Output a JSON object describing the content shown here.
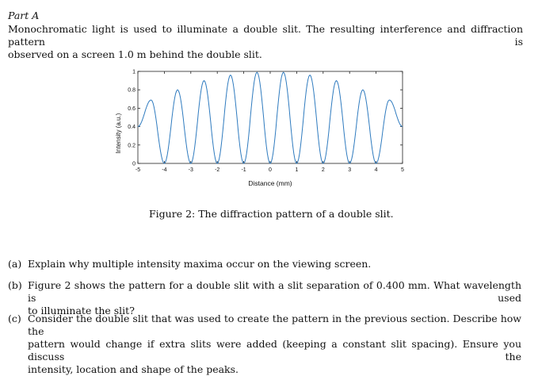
{
  "part_title": "Part A",
  "intro": [
    "Monochromatic light is used to illuminate a double slit. The resulting interference and diffraction pattern is",
    "observed on a screen 1.0 m behind the double slit."
  ],
  "caption": "Figure 2: The diffraction pattern of a double slit.",
  "questions": [
    {
      "label": "(a)",
      "lines": [
        "Explain why multiple intensity maxima occur on the viewing screen."
      ]
    },
    {
      "label": "(b)",
      "lines": [
        "Figure 2 shows the pattern for a double slit with a slit separation of 0.400 mm. What wavelength is used",
        "to illuminate the slit?"
      ]
    },
    {
      "label": "(c)",
      "lines": [
        "Consider the double slit that was used to create the pattern in the previous section. Describe how the",
        "pattern would change if extra slits were added (keeping a constant slit spacing). Ensure you discuss the",
        "intensity, location and shape of the peaks."
      ]
    }
  ],
  "chart_data": {
    "type": "line",
    "title": "",
    "xlabel": "Distance (mm)",
    "ylabel": "Intensity (a.u.)",
    "xlim": [
      -5,
      5
    ],
    "ylim": [
      0,
      1
    ],
    "x_ticks": [
      -5,
      -4,
      -3,
      -2,
      -1,
      0,
      1,
      2,
      3,
      4,
      5
    ],
    "x_tick_labels": [
      "-5",
      "-4",
      "-3",
      "-2",
      "-1",
      "0",
      "1",
      "2",
      "3",
      "4",
      "5"
    ],
    "y_ticks": [
      0,
      0.2,
      0.4,
      0.6,
      0.8,
      1
    ],
    "y_tick_labels": [
      "0",
      "0.2",
      "0.4",
      "0.6",
      "0.8",
      "1"
    ],
    "line_color": "#2f7bbf",
    "series": [
      {
        "x": [
          -5,
          -4.5,
          -4,
          -3.5,
          -3,
          -2.5,
          -2,
          -1.5,
          -1,
          -0.5,
          0,
          0.5,
          1,
          1.5,
          2,
          2.5,
          3,
          3.5,
          4,
          4.5,
          5
        ],
        "y": [
          0.4,
          0.69,
          0,
          0.8,
          0,
          0.9,
          0,
          0.96,
          0,
          0.99,
          0,
          0.99,
          0,
          0.96,
          0,
          0.9,
          0,
          0.8,
          0,
          0.69,
          0.4
        ]
      }
    ]
  }
}
